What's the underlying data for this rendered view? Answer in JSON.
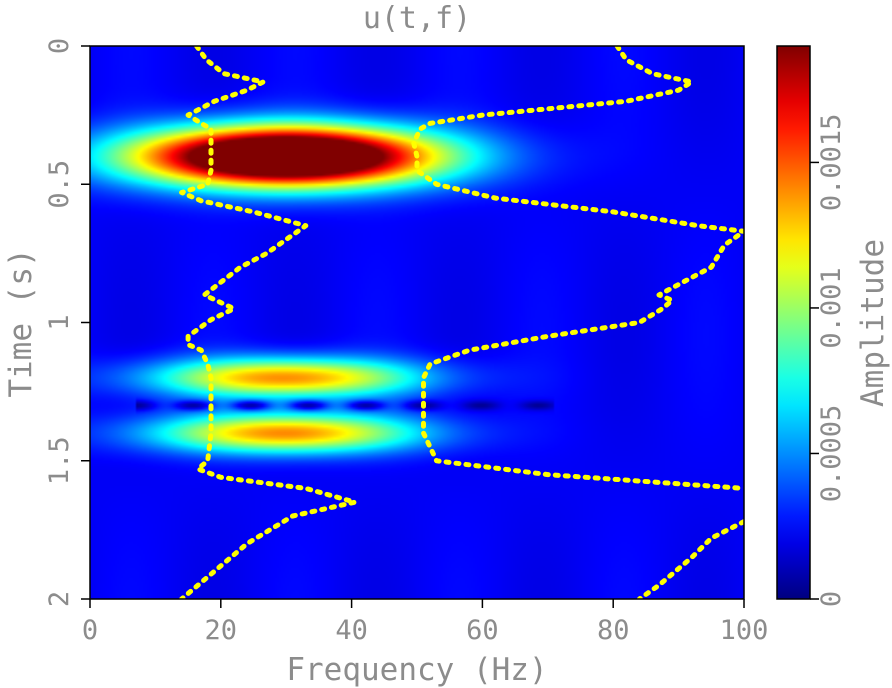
{
  "chart_data": [
    {
      "type": "heatmap",
      "title": "u(t,f)",
      "xlabel": "Frequency (Hz)",
      "ylabel": "Time (s)",
      "xlim": [
        0,
        100
      ],
      "ylim": [
        2,
        0
      ],
      "xticks": [
        0,
        20,
        40,
        60,
        80,
        100
      ],
      "xtick_labels": [
        "0",
        "20",
        "40",
        "60",
        "80",
        "100"
      ],
      "yticks": [
        0,
        0.5,
        1,
        1.5,
        2
      ],
      "ytick_labels": [
        "0",
        "0.5",
        "1",
        "1.5",
        "2"
      ],
      "colormap": "jet",
      "background_color": "#0a28b8",
      "blobs": [
        {
          "t": 0.4,
          "f": 30,
          "peak": 0.0026,
          "sigma_t": 0.075,
          "sigma_f": 16
        },
        {
          "t": 1.2,
          "f": 30,
          "peak": 0.0012,
          "sigma_t": 0.05,
          "sigma_f": 14
        },
        {
          "t": 1.4,
          "f": 30,
          "peak": 0.0012,
          "sigma_t": 0.05,
          "sigma_f": 14
        }
      ],
      "interference_notch": {
        "t": 1.3,
        "f_start": 7,
        "f_end": 71,
        "f_spacing": 4.4
      },
      "overlay_curves": {
        "color": "#ffff00",
        "style": "dashed",
        "curves": [
          [
            [
              0.0,
              16.3
            ],
            [
              0.05,
              17.8
            ],
            [
              0.1,
              20.5
            ],
            [
              0.13,
              26.5
            ],
            [
              0.16,
              24
            ],
            [
              0.2,
              19
            ],
            [
              0.25,
              15
            ],
            [
              0.28,
              17
            ],
            [
              0.3,
              18.5
            ],
            [
              0.35,
              18.5
            ],
            [
              0.45,
              18.5
            ],
            [
              0.5,
              18
            ],
            [
              0.53,
              14
            ],
            [
              0.56,
              17
            ],
            [
              0.6,
              25
            ],
            [
              0.65,
              33
            ],
            [
              0.7,
              30
            ],
            [
              0.75,
              27
            ],
            [
              0.8,
              23
            ],
            [
              0.9,
              17.5
            ],
            [
              0.95,
              22
            ],
            [
              0.99,
              18.5
            ],
            [
              1.05,
              15
            ],
            [
              1.08,
              15
            ],
            [
              1.1,
              17
            ],
            [
              1.15,
              18
            ],
            [
              1.2,
              18.5
            ],
            [
              1.3,
              18.5
            ],
            [
              1.4,
              18.5
            ],
            [
              1.5,
              18
            ],
            [
              1.53,
              16.5
            ],
            [
              1.56,
              20
            ],
            [
              1.6,
              33
            ],
            [
              1.65,
              40.5
            ],
            [
              1.7,
              31
            ],
            [
              1.8,
              24
            ],
            [
              1.9,
              19
            ],
            [
              2.0,
              14
            ]
          ],
          [
            [
              0.0,
              80.6
            ],
            [
              0.05,
              82
            ],
            [
              0.1,
              86
            ],
            [
              0.13,
              92
            ],
            [
              0.16,
              90
            ],
            [
              0.2,
              82
            ],
            [
              0.25,
              60
            ],
            [
              0.28,
              52
            ],
            [
              0.3,
              50.5
            ],
            [
              0.35,
              49.5
            ],
            [
              0.4,
              50
            ],
            [
              0.45,
              50
            ],
            [
              0.5,
              53
            ],
            [
              0.55,
              62
            ],
            [
              0.6,
              80
            ],
            [
              0.65,
              93
            ],
            [
              0.67,
              100
            ],
            [
              0.72,
              97
            ],
            [
              0.8,
              95
            ],
            [
              0.85,
              91
            ],
            [
              0.9,
              87
            ],
            [
              0.92,
              89
            ],
            [
              0.95,
              87.5
            ],
            [
              1.0,
              84
            ],
            [
              1.05,
              70
            ],
            [
              1.1,
              58
            ],
            [
              1.15,
              52
            ],
            [
              1.2,
              51
            ],
            [
              1.3,
              51
            ],
            [
              1.4,
              51
            ],
            [
              1.5,
              53
            ],
            [
              1.55,
              70
            ],
            [
              1.6,
              100
            ]
          ],
          [
            [
              1.72,
              100
            ],
            [
              1.78,
              95
            ],
            [
              1.85,
              92
            ],
            [
              1.95,
              87
            ],
            [
              2.0,
              84
            ]
          ]
        ]
      }
    },
    {
      "type": "colorbar",
      "ylabel": "Amplitude",
      "ylim": [
        0,
        0.0019
      ],
      "ticks": [
        0,
        0.0005,
        0.001,
        0.0015
      ],
      "tick_labels": [
        "0",
        "0.0005",
        "0.001",
        "0.0015"
      ]
    }
  ]
}
